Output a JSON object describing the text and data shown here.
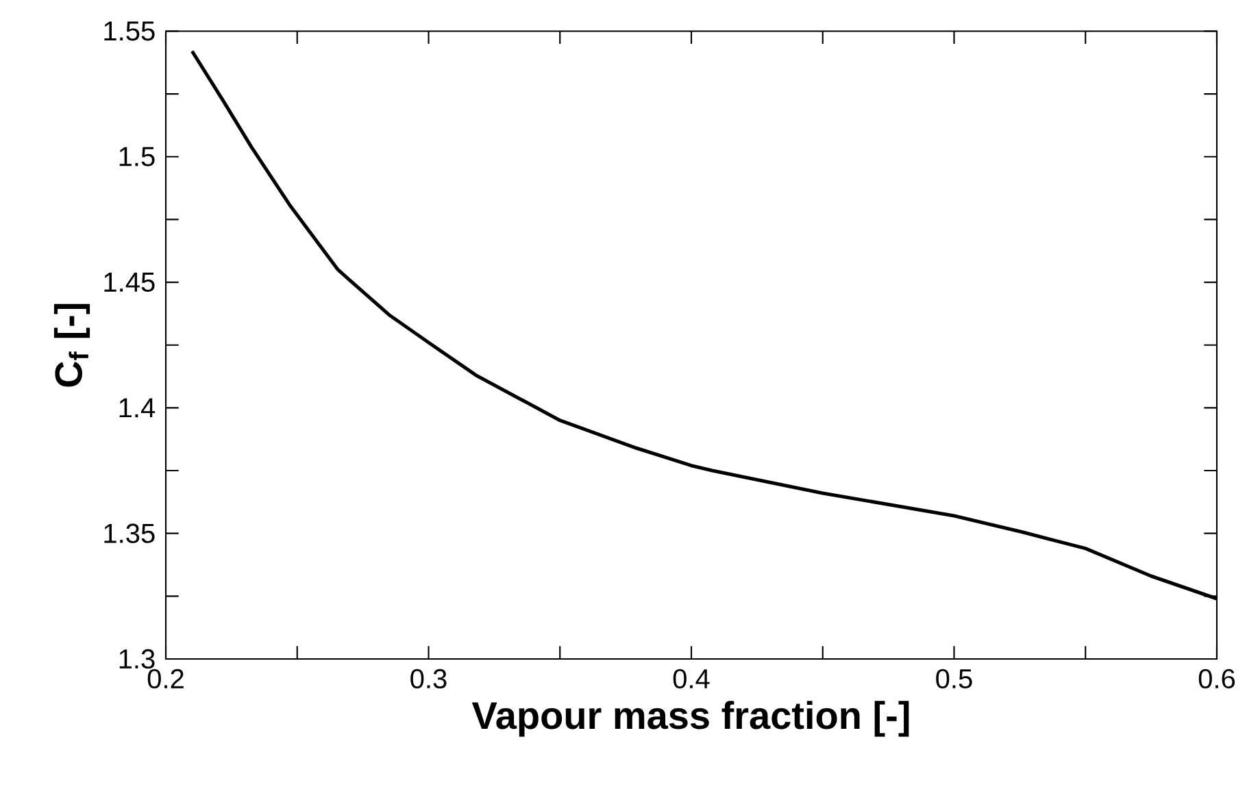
{
  "chart_data": {
    "type": "line",
    "xlabel": "Vapour mass fraction [-]",
    "ylabel": "C$_{f}$ [-]",
    "x": [
      0.21,
      0.222,
      0.2325,
      0.247,
      0.2655,
      0.285,
      0.3,
      0.318,
      0.35,
      0.379,
      0.4,
      0.408,
      0.45,
      0.5,
      0.526,
      0.55,
      0.575,
      0.6
    ],
    "series": [
      {
        "color": "#000000",
        "values": [
          1.542,
          1.522,
          1.504,
          1.481,
          1.455,
          1.437,
          1.426,
          1.413,
          1.395,
          1.384,
          1.377,
          1.375,
          1.366,
          1.357,
          1.3505,
          1.344,
          1.333,
          1.324
        ]
      }
    ],
    "xlim": [
      0.2,
      0.6
    ],
    "xticks": [
      0.2,
      {
        "value": 0.25,
        "label": null
      },
      0.3,
      {
        "value": 0.35,
        "label": null
      },
      0.4,
      {
        "value": 0.45,
        "label": null
      },
      0.5,
      {
        "value": 0.55,
        "label": null
      },
      0.6
    ],
    "ylim": [
      1.3,
      1.55
    ],
    "yticks": [
      1.3,
      {
        "value": 1.325,
        "label": null
      },
      1.35,
      {
        "value": 1.375,
        "label": null
      },
      1.4,
      {
        "value": 1.425,
        "label": null
      },
      1.45,
      {
        "value": 1.475,
        "label": null
      },
      1.5,
      {
        "value": 1.525,
        "label": null
      },
      1.55
    ],
    "grid": false,
    "legend": false,
    "marker": "none",
    "line_style": "solid"
  }
}
